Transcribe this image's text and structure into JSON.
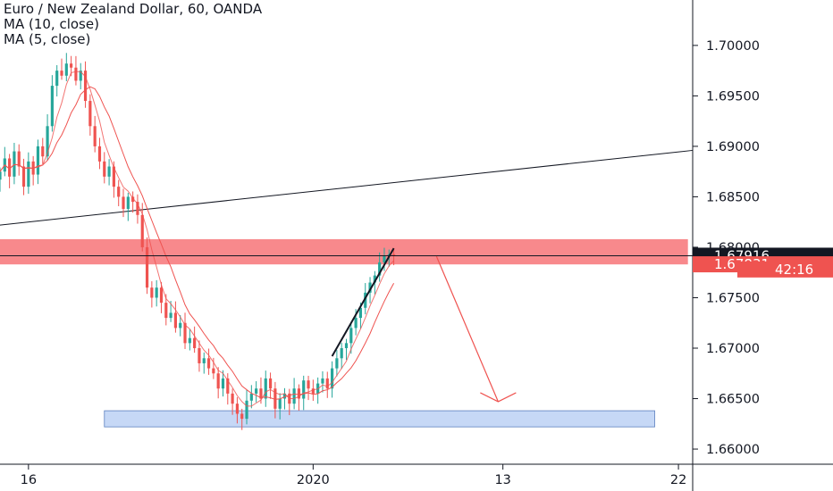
{
  "chart_data": {
    "type": "candlestick",
    "title": "Euro / New Zealand Dollar, 60, OANDA",
    "indicators": [
      "MA (10, close)",
      "MA (5, close)"
    ],
    "y_ticks": [
      1.66,
      1.665,
      1.67,
      1.675,
      1.68,
      1.685,
      1.69,
      1.695,
      1.7
    ],
    "y_tick_labels": [
      "1.66000",
      "1.66500",
      "1.67000",
      "1.67500",
      "1.68000",
      "1.68500",
      "1.69000",
      "1.69500",
      "1.70000"
    ],
    "ylim": [
      1.6585,
      1.7045
    ],
    "x_tick_labels": [
      "16",
      "2020",
      "13",
      "22"
    ],
    "x_tick_index": [
      6,
      66,
      106,
      143
    ],
    "x_range": [
      0,
      146
    ],
    "price_badges": [
      {
        "label": "1.67916",
        "value": 1.67916,
        "style": "last-price"
      },
      {
        "label": "1.67831",
        "value": 1.67831,
        "style": "bid"
      },
      {
        "label": "42:16",
        "value": 1.6778,
        "style": "countdown"
      }
    ],
    "resistance_zone": {
      "from_index": 0,
      "to_index": 145,
      "low": 1.6783,
      "high": 1.6808,
      "color": "#f77c80"
    },
    "support_zone": {
      "from_index": 22,
      "to_index": 138,
      "low": 1.6622,
      "high": 1.6638,
      "color": "#c6d8f6"
    },
    "horizontal_line": {
      "value": 1.67916
    },
    "trend_line": {
      "x0": 0,
      "y0": 1.6822,
      "x1": 146,
      "y1": 1.6896
    },
    "uptrend_line": {
      "x0": 70,
      "y0": 1.6692,
      "x1": 83,
      "y1": 1.6799
    },
    "projection_arrow": {
      "x0": 92,
      "y0": 1.6791,
      "x1": 105,
      "y1": 1.6647
    },
    "colors": {
      "up": "#26a69a",
      "down": "#ef5350",
      "ma10": "#ef5350",
      "ma5": "#ef5350",
      "badge_dark": "#131722",
      "badge_red": "#ef5350",
      "arrow": "#ef5350"
    },
    "closes": [
      1.6875,
      1.6888,
      1.687,
      1.6895,
      1.688,
      1.686,
      1.6885,
      1.6872,
      1.69,
      1.689,
      1.692,
      1.696,
      1.6975,
      1.697,
      1.6982,
      1.6978,
      1.6965,
      1.6975,
      1.6945,
      1.692,
      1.69,
      1.6885,
      1.687,
      1.688,
      1.686,
      1.685,
      1.6838,
      1.685,
      1.6845,
      1.6832,
      1.68,
      1.676,
      1.675,
      1.676,
      1.6745,
      1.673,
      1.6735,
      1.672,
      1.6725,
      1.6705,
      1.671,
      1.67,
      1.6685,
      1.669,
      1.668,
      1.6675,
      1.666,
      1.667,
      1.6655,
      1.6645,
      1.6635,
      1.663,
      1.6648,
      1.6655,
      1.666,
      1.665,
      1.667,
      1.666,
      1.664,
      1.665,
      1.6655,
      1.6645,
      1.666,
      1.665,
      1.6668,
      1.666,
      1.6655,
      1.6665,
      1.667,
      1.666,
      1.668,
      1.669,
      1.67,
      1.6705,
      1.672,
      1.673,
      1.674,
      1.6755,
      1.6765,
      1.6772,
      1.6785,
      1.6792,
      1.6793,
      1.6792
    ]
  }
}
